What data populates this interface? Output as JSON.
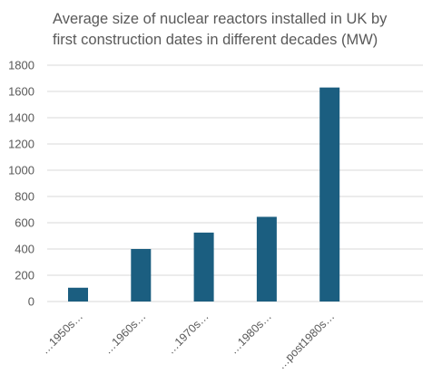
{
  "chart_data": {
    "type": "bar",
    "title": "Average size of nuclear reactors installed in UK by first construction dates in different decades (MW)",
    "categories": [
      "…1950s…",
      "…1960s…",
      "…1970s…",
      "…1980s…",
      "…post1980s…"
    ],
    "values": [
      105,
      400,
      525,
      645,
      1630
    ],
    "xlabel": "",
    "ylabel": "",
    "ylim": [
      0,
      1800
    ],
    "yticks": [
      0,
      200,
      400,
      600,
      800,
      1000,
      1200,
      1400,
      1600,
      1800
    ],
    "grid": true,
    "legend": "none",
    "bar_color": "#1b5e80",
    "grid_color": "#d9d9d9",
    "text_color": "#595959"
  }
}
